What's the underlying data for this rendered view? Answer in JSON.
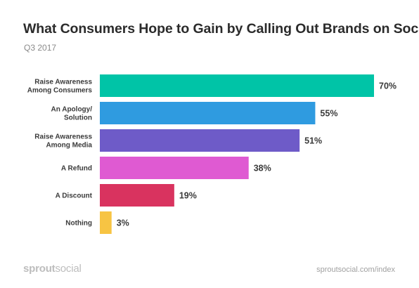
{
  "header": {
    "title": "What Consumers Hope to Gain by Calling Out Brands on Social",
    "subtitle": "Q3 2017"
  },
  "footer": {
    "logo_bold": "sprout",
    "logo_light": "social",
    "source": "sproutsocial.com/index"
  },
  "chart_data": {
    "type": "bar",
    "orientation": "horizontal",
    "title": "What Consumers Hope to Gain by Calling Out Brands on Social",
    "subtitle": "Q3 2017",
    "categories": [
      [
        "Raise Awareness",
        "Among Consumers"
      ],
      [
        "An Apology/",
        "Solution"
      ],
      [
        "Raise Awareness",
        "Among Media"
      ],
      [
        "A Refund"
      ],
      [
        "A Discount"
      ],
      [
        "Nothing"
      ]
    ],
    "values": [
      70,
      55,
      51,
      38,
      19,
      3
    ],
    "value_labels": [
      "70%",
      "55%",
      "51%",
      "38%",
      "19%",
      "3%"
    ],
    "colors": [
      "#00c4a7",
      "#2f9be0",
      "#6e5bc8",
      "#df5ad2",
      "#d9335f",
      "#f7c443"
    ],
    "xlim": [
      0,
      70
    ],
    "grid": false,
    "legend": "none"
  }
}
